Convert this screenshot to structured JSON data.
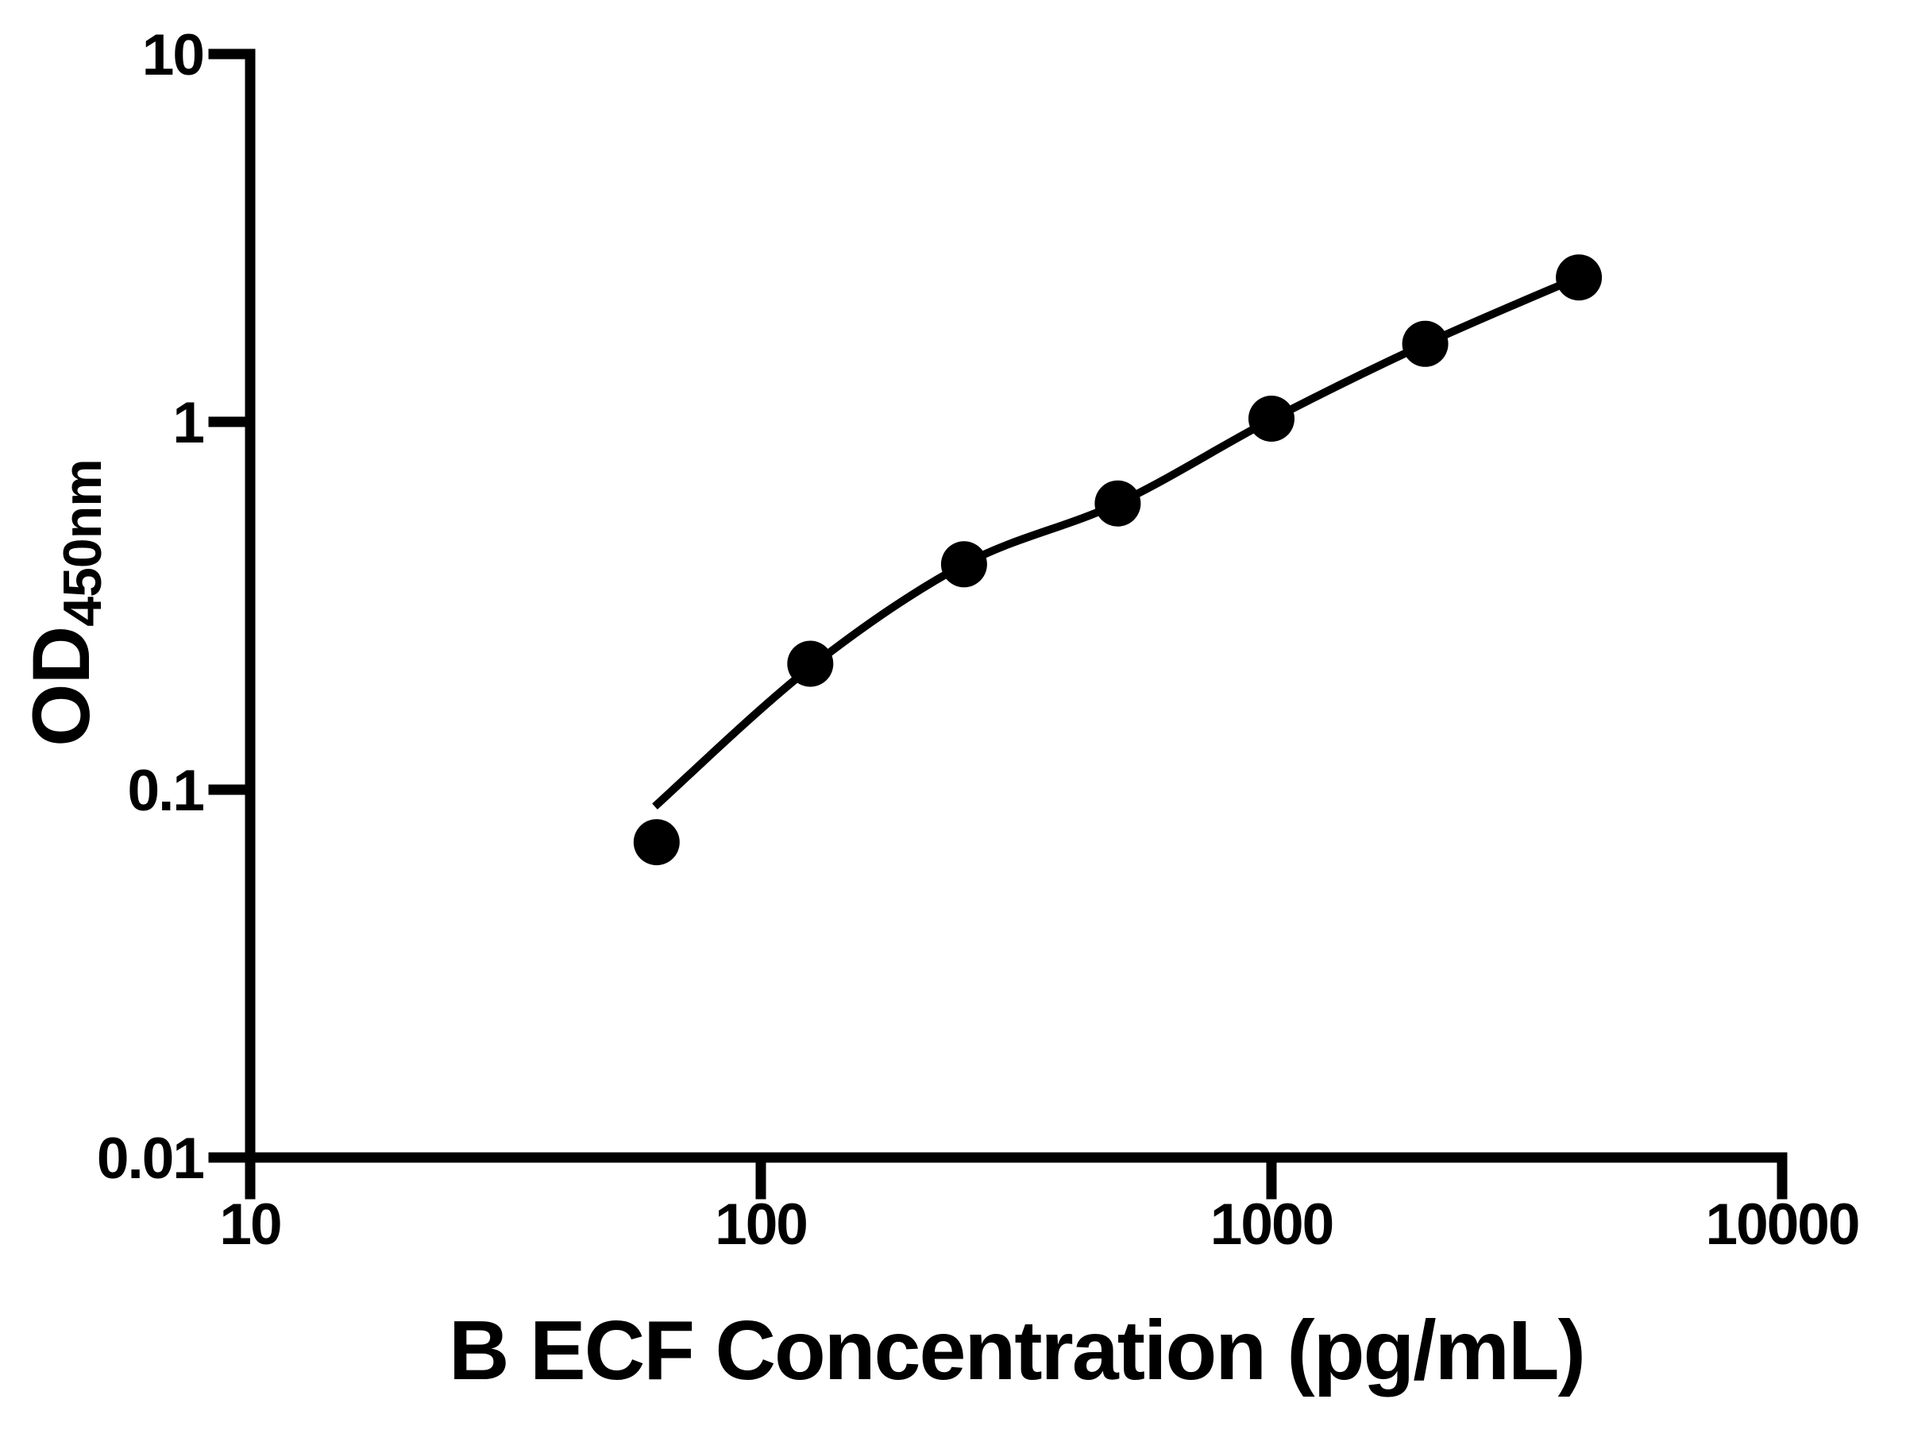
{
  "chart_data": {
    "type": "scatter",
    "title": "",
    "xlabel": "B ECF Concentration (pg/mL)",
    "ylabel_main": "OD",
    "ylabel_sub": "450nm",
    "x_scale": "log",
    "y_scale": "log",
    "xlim": [
      10,
      10000
    ],
    "ylim": [
      0.01,
      10
    ],
    "x_ticks": [
      10,
      100,
      1000,
      10000
    ],
    "x_tick_labels": [
      "10",
      "100",
      "1000",
      "10000"
    ],
    "y_ticks": [
      0.01,
      0.1,
      1,
      10
    ],
    "y_tick_labels": [
      "0.01",
      "0.1",
      "1",
      "10"
    ],
    "grid": false,
    "legend": false,
    "ink_color": "#000000",
    "background_color": "#ffffff",
    "series": [
      {
        "name": "standard-curve-points",
        "marker": "filled-circle",
        "color": "#000000",
        "x": [
          62.5,
          125,
          250,
          500,
          1000,
          2000,
          4000
        ],
        "y": [
          0.072,
          0.22,
          0.41,
          0.6,
          1.02,
          1.63,
          2.47
        ]
      }
    ],
    "fit_curve": [
      [
        62,
        0.09
      ],
      [
        125,
        0.215
      ],
      [
        250,
        0.41
      ],
      [
        500,
        0.6
      ],
      [
        1000,
        1.015
      ],
      [
        2000,
        1.628
      ],
      [
        4000,
        2.473
      ]
    ]
  }
}
